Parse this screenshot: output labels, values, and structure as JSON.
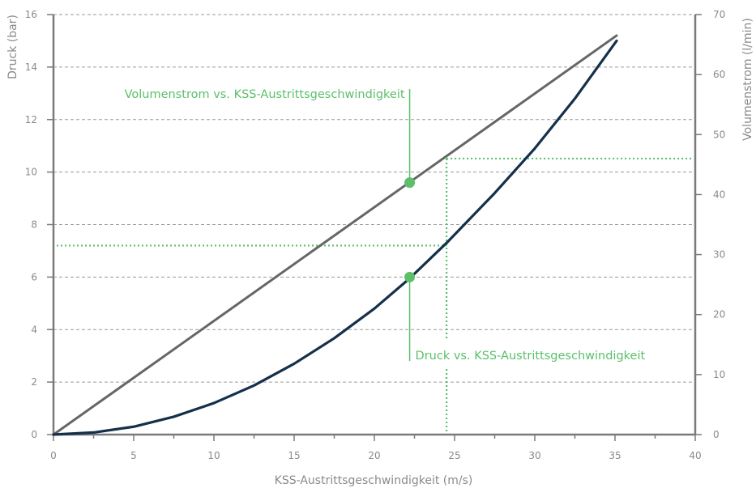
{
  "chart_data": {
    "type": "line",
    "xlabel": "KSS-Austrittsgeschwindigkeit (m/s)",
    "ylabel_left": "Druck (bar)",
    "ylabel_right": "Volumenstrom (l/min)",
    "xlim": [
      0,
      40
    ],
    "ylim_left": [
      0,
      16
    ],
    "ylim_right": [
      0,
      70
    ],
    "x_ticks": [
      0,
      5,
      10,
      15,
      20,
      25,
      30,
      35,
      40
    ],
    "y_ticks_left": [
      0,
      2,
      4,
      6,
      8,
      10,
      12,
      14,
      16
    ],
    "y_ticks_right": [
      0,
      10,
      20,
      30,
      40,
      50,
      60,
      70
    ],
    "grid": true,
    "series": [
      {
        "name": "Volumenstrom vs. KSS-Austrittsgeschwindigkeit",
        "axis": "right",
        "color": "#666666",
        "x": [
          0,
          35.1
        ],
        "y": [
          0,
          66.5
        ]
      },
      {
        "name": "Druck vs. KSS-Austrittsgeschwindigkeit",
        "axis": "left",
        "color": "#15304a",
        "x": [
          0,
          2.5,
          5,
          7.5,
          10,
          12.5,
          15,
          17.5,
          20,
          22.2,
          24.5,
          27.5,
          30,
          32.5,
          35.1
        ],
        "y": [
          0,
          0.08,
          0.3,
          0.68,
          1.2,
          1.87,
          2.7,
          3.67,
          4.8,
          5.95,
          7.3,
          9.2,
          10.9,
          12.8,
          15.0
        ]
      }
    ],
    "markers": [
      {
        "series": 0,
        "x": 22.2,
        "y": 42
      },
      {
        "series": 1,
        "x": 22.2,
        "y": 6.0
      }
    ],
    "reference_lines": {
      "color": "#5cbf6a",
      "vertical_x": 24.5,
      "horizontal_left_y": 7.2,
      "horizontal_right_y": 46
    },
    "annotations": [
      {
        "text": "Volumenstrom vs. KSS-Austrittsgeschwindigkeit",
        "color": "#5cbf6a"
      },
      {
        "text": "Druck vs. KSS-Austrittsgeschwindigkeit",
        "color": "#5cbf6a"
      }
    ],
    "colors": {
      "axis": "#7a7a7a",
      "grid": "#9a9a9a",
      "accent": "#5cbf6a"
    }
  }
}
